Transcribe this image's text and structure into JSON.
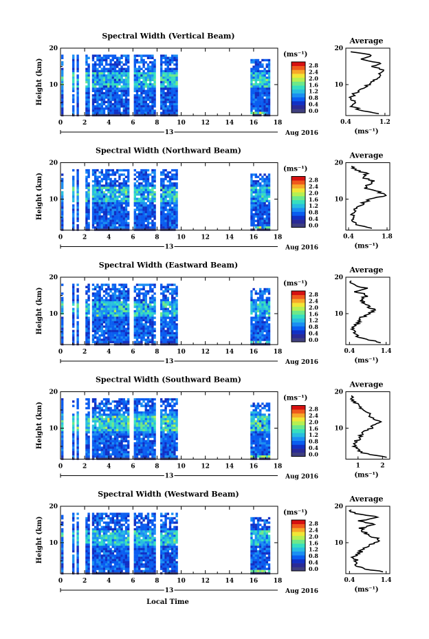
{
  "figure": {
    "xlabel": "Local Time",
    "day_label": "13",
    "date_label": "Aug 2016",
    "ylabel": "Height (km)",
    "colorbar_unit": "(ms⁻¹)",
    "colorbar_ticks": [
      "2.8",
      "2.4",
      "2.0",
      "1.6",
      "1.2",
      "0.8",
      "0.4",
      "0.0"
    ],
    "avg_title": "Average",
    "avg_unit": "(ms⁻¹)"
  },
  "chart_data": [
    {
      "type": "heatmap",
      "title": "Spectral Width (Vertical Beam)",
      "x_ticks": [
        "0",
        "2",
        "4",
        "6",
        "8",
        "10",
        "12",
        "14",
        "16",
        "18"
      ],
      "y_ticks": [
        "20",
        "10"
      ],
      "xlim": [
        0,
        18
      ],
      "ylim": [
        1.5,
        20
      ],
      "data_gaps_h": [
        [
          0.2,
          0.8
        ],
        [
          1.0,
          1.3
        ],
        [
          1.5,
          1.9
        ],
        [
          2.3,
          2.6
        ],
        [
          5.7,
          5.9
        ],
        [
          7.8,
          8.1
        ],
        [
          9.6,
          15.6
        ]
      ],
      "average_profile": {
        "title": "Average",
        "x_ticks": [
          "0.4",
          "1.2"
        ],
        "y_ticks": [
          "20",
          "10"
        ],
        "xlim": [
          0.4,
          1.3
        ],
        "heights_km": [
          2,
          3,
          4,
          5,
          6,
          7,
          8,
          9,
          10,
          11,
          12,
          13,
          14,
          15,
          16,
          17,
          18,
          19
        ],
        "values": [
          1.1,
          0.7,
          0.55,
          0.6,
          0.5,
          0.55,
          0.62,
          0.78,
          0.85,
          0.95,
          1.05,
          1.1,
          1.2,
          0.95,
          1.1,
          0.7,
          0.95,
          0.5
        ]
      }
    },
    {
      "type": "heatmap",
      "title": "Spectral Width (Northward Beam)",
      "x_ticks": [
        "0",
        "2",
        "4",
        "6",
        "8",
        "10",
        "12",
        "14",
        "16",
        "18"
      ],
      "y_ticks": [
        "20",
        "10"
      ],
      "xlim": [
        0,
        18
      ],
      "ylim": [
        1.5,
        20
      ],
      "data_gaps_h": [
        [
          0.2,
          0.8
        ],
        [
          1.0,
          1.3
        ],
        [
          1.5,
          1.9
        ],
        [
          2.3,
          2.6
        ],
        [
          5.7,
          5.9
        ],
        [
          7.8,
          8.1
        ],
        [
          9.6,
          15.6
        ]
      ],
      "average_profile": {
        "title": "Average",
        "x_ticks": [
          "0.4",
          "1.8"
        ],
        "y_ticks": [
          "20",
          "10"
        ],
        "xlim": [
          0.3,
          1.9
        ],
        "heights_km": [
          2,
          3,
          4,
          5,
          6,
          7,
          8,
          9,
          10,
          11,
          12,
          13,
          14,
          15,
          16,
          17,
          18,
          19
        ],
        "values": [
          1.2,
          0.7,
          0.55,
          0.6,
          0.5,
          0.62,
          0.8,
          0.95,
          1.2,
          1.75,
          1.5,
          1.0,
          1.1,
          1.3,
          0.9,
          1.1,
          0.6,
          0.5
        ]
      }
    },
    {
      "type": "heatmap",
      "title": "Spectral Width (Eastward Beam)",
      "x_ticks": [
        "0",
        "2",
        "4",
        "6",
        "8",
        "10",
        "12",
        "14",
        "16",
        "18"
      ],
      "y_ticks": [
        "20",
        "10"
      ],
      "xlim": [
        0,
        18
      ],
      "ylim": [
        1.5,
        20
      ],
      "data_gaps_h": [
        [
          0.2,
          0.8
        ],
        [
          1.0,
          1.3
        ],
        [
          1.5,
          1.9
        ],
        [
          2.3,
          2.6
        ],
        [
          5.7,
          5.9
        ],
        [
          7.8,
          8.1
        ],
        [
          9.6,
          15.6
        ]
      ],
      "average_profile": {
        "title": "Average",
        "x_ticks": [
          "0.4",
          "1.4"
        ],
        "y_ticks": [
          "20",
          "10"
        ],
        "xlim": [
          0.3,
          1.5
        ],
        "heights_km": [
          2,
          3,
          4,
          5,
          6,
          7,
          8,
          9,
          10,
          11,
          12,
          13,
          14,
          15,
          16,
          17,
          18,
          19
        ],
        "values": [
          1.3,
          0.8,
          0.6,
          0.55,
          0.5,
          0.6,
          0.65,
          0.75,
          0.95,
          1.1,
          0.9,
          0.8,
          0.7,
          0.9,
          0.6,
          0.85,
          0.5,
          0.45
        ]
      }
    },
    {
      "type": "heatmap",
      "title": "Spectral Width (Southward Beam)",
      "x_ticks": [
        "0",
        "2",
        "4",
        "6",
        "8",
        "10",
        "12",
        "14",
        "16",
        "18"
      ],
      "y_ticks": [
        "20",
        "10"
      ],
      "xlim": [
        0,
        18
      ],
      "ylim": [
        1.5,
        20
      ],
      "data_gaps_h": [
        [
          0.2,
          0.8
        ],
        [
          1.0,
          1.3
        ],
        [
          1.5,
          1.9
        ],
        [
          2.3,
          2.6
        ],
        [
          5.7,
          5.9
        ],
        [
          7.8,
          8.1
        ],
        [
          9.6,
          15.6
        ]
      ],
      "average_profile": {
        "title": "Average",
        "x_ticks": [
          "1",
          "2"
        ],
        "y_ticks": [
          "20",
          "10"
        ],
        "xlim": [
          0.5,
          2.3
        ],
        "heights_km": [
          2,
          3,
          4,
          5,
          6,
          7,
          8,
          9,
          10,
          11,
          12,
          13,
          14,
          15,
          16,
          17,
          18,
          19
        ],
        "values": [
          2.2,
          1.3,
          1.0,
          0.9,
          0.85,
          1.0,
          1.1,
          1.3,
          1.5,
          1.7,
          1.9,
          1.5,
          1.4,
          1.2,
          1.0,
          0.9,
          0.8,
          0.75
        ]
      }
    },
    {
      "type": "heatmap",
      "title": "Spectral Width (Westward Beam)",
      "x_ticks": [
        "0",
        "2",
        "4",
        "6",
        "8",
        "10",
        "12",
        "14",
        "16",
        "18"
      ],
      "y_ticks": [
        "20",
        "10"
      ],
      "xlim": [
        0,
        18
      ],
      "ylim": [
        1.5,
        20
      ],
      "data_gaps_h": [
        [
          0.2,
          0.8
        ],
        [
          1.0,
          1.3
        ],
        [
          1.5,
          1.9
        ],
        [
          2.3,
          2.6
        ],
        [
          5.7,
          5.9
        ],
        [
          7.8,
          8.1
        ],
        [
          9.6,
          15.6
        ]
      ],
      "average_profile": {
        "title": "Average",
        "x_ticks": [
          "0.4",
          "1.4"
        ],
        "y_ticks": [
          "20",
          "10"
        ],
        "xlim": [
          0.3,
          1.5
        ],
        "heights_km": [
          2,
          3,
          4,
          5,
          6,
          7,
          8,
          9,
          10,
          11,
          12,
          13,
          14,
          15,
          16,
          17,
          18,
          19
        ],
        "values": [
          1.3,
          0.75,
          0.55,
          0.6,
          0.5,
          0.65,
          0.75,
          0.9,
          1.1,
          1.2,
          0.95,
          0.8,
          0.7,
          1.1,
          0.65,
          1.2,
          0.5,
          0.45
        ]
      }
    }
  ],
  "colormap": [
    "#3f3f7f",
    "#2a2a96",
    "#1230c4",
    "#0a5df0",
    "#1b8ff2",
    "#28bde0",
    "#36dec0",
    "#6de88a",
    "#b6ef52",
    "#f0e636",
    "#f7a829",
    "#ef5a1c",
    "#d61111"
  ]
}
